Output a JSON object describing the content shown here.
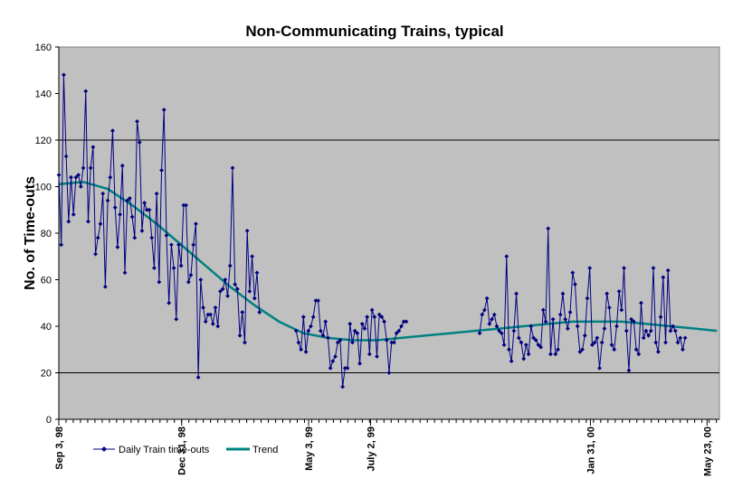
{
  "chart_data": {
    "type": "line",
    "title": "Non-Communicating Trains, typical",
    "ylabel": "No. of Time-outs",
    "xlabel": "",
    "ylim": [
      0,
      160
    ],
    "y_ticks": [
      0,
      20,
      40,
      60,
      80,
      100,
      120,
      140,
      160
    ],
    "grid": "horizontal lines at 20 and 120",
    "legend_position": "bottom-left",
    "x_date_range": [
      "Sep 3, 98",
      "Jun 1, 00"
    ],
    "x_labels": [
      {
        "label": "Sep 3, 98",
        "day": 0
      },
      {
        "label": "Dec 31, 98",
        "day": 119
      },
      {
        "label": "May 3, 99",
        "day": 242
      },
      {
        "label": "July 2, 99",
        "day": 302
      },
      {
        "label": "Jan 31, 00",
        "day": 515
      },
      {
        "label": "May 23, 00",
        "day": 628
      }
    ],
    "colors": {
      "plot_background": "#c0c0c0",
      "daily_series": "#000080",
      "trend_series": "#008080"
    },
    "series": [
      {
        "name": "Daily Train time-outs",
        "marker": "diamond",
        "segments": [
          {
            "x": [
              0,
              1,
              2,
              3,
              4,
              5,
              6,
              7,
              8,
              9,
              10,
              11,
              12,
              13,
              14,
              15,
              16,
              17,
              18,
              19,
              20,
              21,
              22,
              23,
              24,
              25,
              26,
              27,
              28,
              29,
              30,
              31,
              32,
              33,
              34,
              35,
              36,
              37,
              38,
              39,
              40,
              41,
              42,
              43,
              44,
              45,
              46,
              47,
              48,
              49,
              50,
              51,
              52,
              53,
              54,
              55,
              56,
              57,
              58,
              59,
              60,
              61,
              62,
              63,
              64,
              65,
              66,
              67,
              68,
              69,
              70,
              71,
              72,
              73,
              74,
              75,
              76,
              77,
              78,
              79,
              80,
              81,
              82,
              83,
              84,
              85,
              86,
              87,
              88,
              89,
              90,
              91,
              92,
              93,
              94,
              95,
              96,
              97,
              98,
              99,
              100,
              101,
              102,
              103,
              104,
              105,
              106,
              107,
              108,
              109,
              110,
              111,
              112,
              113,
              114,
              115,
              116
            ],
            "y": [
              105,
              75,
              148,
              113,
              85,
              104,
              88,
              104,
              105,
              100,
              108,
              141,
              85,
              108,
              117,
              71,
              78,
              84,
              97,
              57,
              94,
              104,
              124,
              91,
              74,
              88,
              109,
              63,
              94,
              95,
              87,
              78,
              128,
              119,
              81,
              93,
              90,
              90,
              78,
              65,
              97,
              59,
              107,
              133,
              79,
              50,
              75,
              65,
              43,
              75,
              66,
              92,
              92,
              59,
              62,
              75,
              84,
              18,
              60,
              48,
              42,
              45,
              45,
              41,
              48,
              40,
              55,
              56,
              60,
              53,
              66,
              108,
              58,
              56,
              36,
              46,
              33,
              81,
              55,
              70,
              52,
              63,
              46,
              null,
              null,
              null,
              null,
              null,
              null,
              null,
              null,
              null,
              null,
              null,
              null,
              null,
              null,
              null,
              null,
              null,
              null,
              null,
              null,
              null,
              null,
              null,
              null,
              null,
              null,
              null,
              null,
              null,
              null,
              null,
              null,
              null,
              null
            ]
          },
          {
            "x": [
              97,
              98,
              99,
              100,
              101,
              102,
              103,
              104,
              105,
              106,
              107,
              108,
              109,
              110,
              111,
              112,
              113,
              114,
              115,
              116,
              117,
              118,
              119,
              120,
              121,
              122,
              123,
              124,
              125,
              126,
              127,
              128,
              129,
              130,
              131,
              132,
              133,
              134,
              135,
              136,
              137,
              138,
              139,
              140,
              141,
              142,
              143,
              144,
              145,
              146,
              147,
              148,
              149,
              150,
              151
            ],
            "y": [
              38,
              33,
              30,
              44,
              29,
              38,
              40,
              44,
              51,
              51,
              38,
              36,
              42,
              35,
              22,
              25,
              27,
              33,
              34,
              14,
              22,
              22,
              41,
              33,
              38,
              37,
              24,
              41,
              39,
              44,
              28,
              47,
              44,
              27,
              45,
              44,
              42,
              34,
              20,
              33,
              33,
              37,
              38,
              40,
              42,
              42,
              null,
              null,
              null,
              null,
              null,
              null,
              null,
              null,
              null
            ]
          },
          {
            "x": [
              172,
              173,
              174,
              175,
              176,
              177,
              178,
              179,
              180,
              181,
              182,
              183,
              184,
              185,
              186,
              187,
              188,
              189,
              190,
              191,
              192,
              193,
              194,
              195,
              196,
              197,
              198,
              199,
              200,
              201,
              202,
              203,
              204,
              205,
              206,
              207,
              208,
              209,
              210,
              211,
              212,
              213,
              214,
              215,
              216,
              217,
              218,
              219,
              220,
              221,
              222,
              223,
              224,
              225,
              226,
              227,
              228,
              229,
              230,
              231,
              232,
              233,
              234,
              235,
              236,
              237,
              238,
              239,
              240,
              241,
              242,
              243,
              244,
              245,
              246,
              247,
              248,
              249,
              250,
              251,
              252,
              253,
              254,
              255,
              256,
              257,
              258,
              259,
              260,
              261,
              262,
              263,
              264,
              265,
              266,
              267,
              268,
              269
            ],
            "y": [
              37,
              45,
              47,
              52,
              41,
              43,
              45,
              40,
              38,
              37,
              32,
              70,
              30,
              25,
              38,
              54,
              35,
              33,
              26,
              32,
              28,
              40,
              35,
              34,
              32,
              31,
              47,
              42,
              82,
              28,
              43,
              28,
              30,
              45,
              54,
              43,
              39,
              46,
              63,
              58,
              40,
              29,
              30,
              36,
              52,
              65,
              32,
              33,
              35,
              22,
              33,
              39,
              54,
              48,
              32,
              30,
              40,
              55,
              47,
              65,
              38,
              21,
              43,
              42,
              30,
              28,
              50,
              35,
              38,
              36,
              38,
              65,
              33,
              29,
              44,
              61,
              33,
              64,
              38,
              40,
              38,
              33,
              35,
              30,
              35,
              null,
              null,
              null,
              null,
              null,
              null,
              null,
              null,
              null,
              null,
              null,
              null,
              null
            ]
          }
        ]
      },
      {
        "name": "Trend",
        "marker": "none",
        "x": [
          0,
          10,
          20,
          30,
          40,
          50,
          60,
          70,
          80,
          90,
          100,
          110,
          120,
          130,
          140,
          150,
          160,
          170,
          180,
          190,
          200,
          210,
          220,
          230,
          240,
          250,
          260,
          269
        ],
        "y": [
          101,
          102,
          99,
          92,
          84,
          75,
          66,
          57,
          49,
          42,
          37,
          35,
          34,
          34,
          35,
          36,
          37,
          38,
          39,
          40,
          41,
          42,
          42,
          42,
          41,
          40,
          39,
          38
        ]
      }
    ]
  }
}
